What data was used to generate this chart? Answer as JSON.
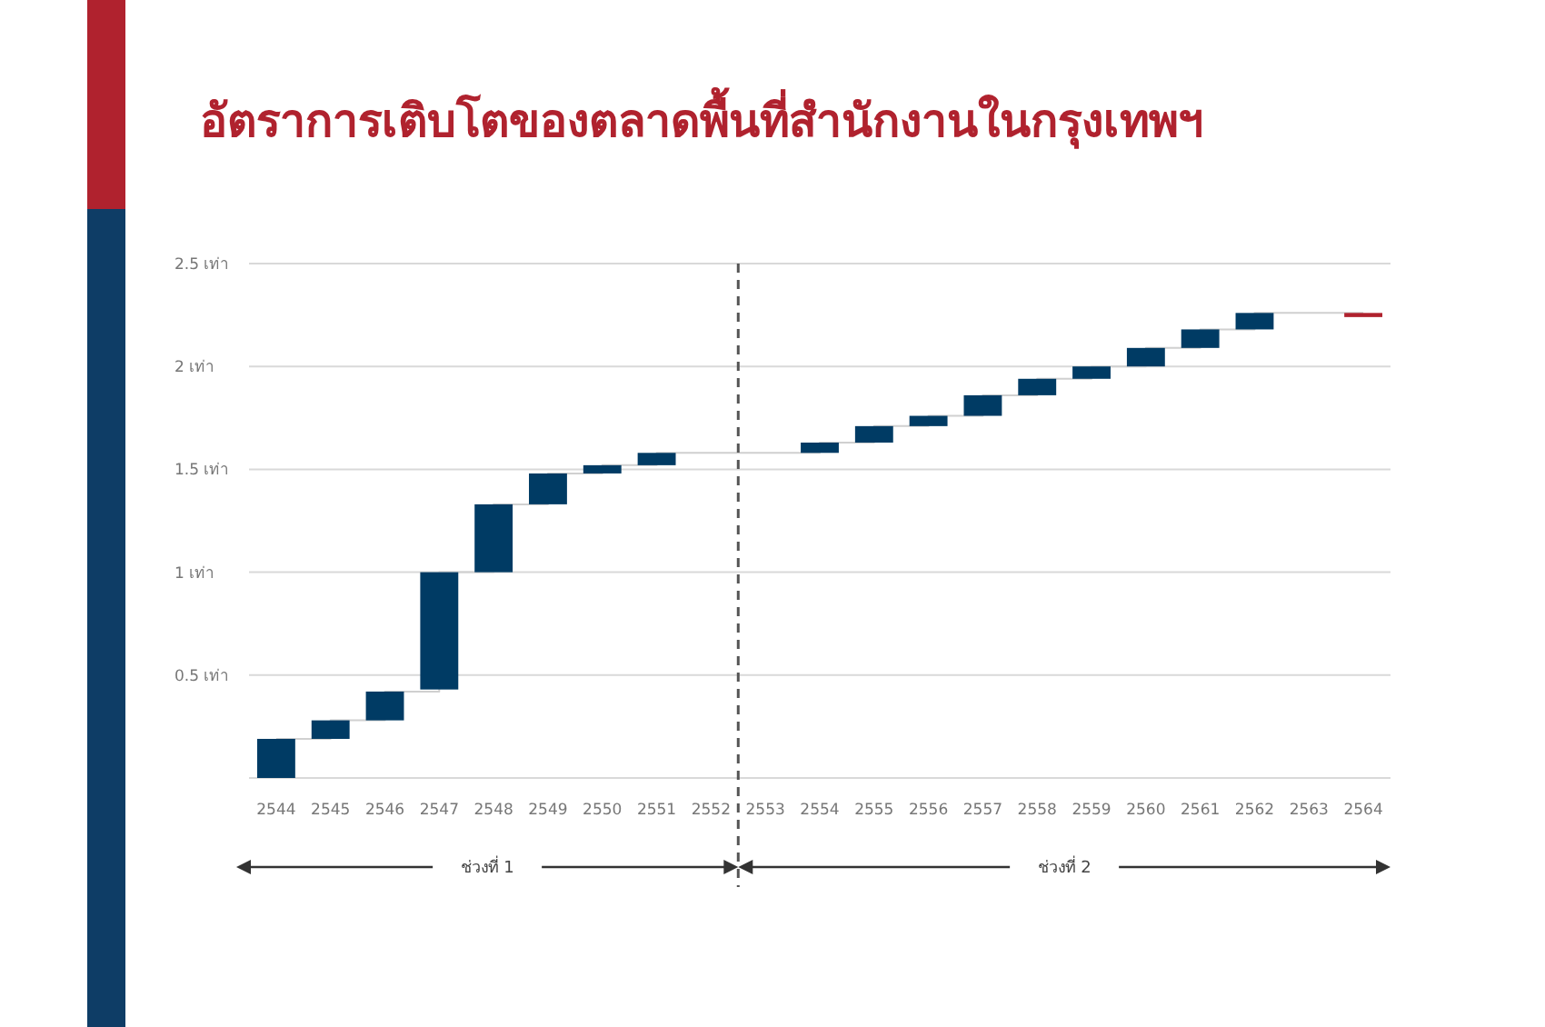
{
  "chart_data": {
    "type": "bar",
    "title": "อัตราการเติบโตของตลาดพื้นที่สำนักงานในกรุงเทพฯ",
    "categories": [
      "2544",
      "2545",
      "2546",
      "2547",
      "2548",
      "2549",
      "2550",
      "2551",
      "2552",
      "2553",
      "2554",
      "2555",
      "2556",
      "2557",
      "2558",
      "2559",
      "2560",
      "2561",
      "2562",
      "2563",
      "2564"
    ],
    "series": [
      {
        "values": [
          0.19,
          0.09,
          0.14,
          0.57,
          0.33,
          0.15,
          0.04,
          0.06,
          null,
          null,
          0.05,
          0.08,
          0.05,
          0.1,
          0.08,
          0.06,
          0.09,
          0.09,
          0.08,
          null,
          0.02
        ],
        "base": [
          0,
          0.19,
          0.28,
          0.43,
          1.0,
          1.33,
          1.48,
          1.52,
          null,
          null,
          1.58,
          1.63,
          1.71,
          1.76,
          1.86,
          1.94,
          2.0,
          2.09,
          2.18,
          null,
          2.24
        ],
        "colors": [
          "#003b64",
          "#003b64",
          "#003b64",
          "#003b64",
          "#003b64",
          "#003b64",
          "#003b64",
          "#003b64",
          null,
          null,
          "#003b64",
          "#003b64",
          "#003b64",
          "#003b64",
          "#003b64",
          "#003b64",
          "#003b64",
          "#003b64",
          "#003b64",
          null,
          "#b0222e"
        ]
      },
      {
        "type": "step",
        "color": "#d0d0d0",
        "values": [
          0.19,
          0.28,
          0.42,
          1.0,
          1.33,
          1.48,
          1.52,
          1.58,
          1.58,
          1.58,
          1.63,
          1.71,
          1.76,
          1.86,
          1.94,
          2.0,
          2.09,
          2.18,
          2.26,
          2.26,
          2.26
        ]
      }
    ],
    "ylim": [
      0,
      2.5
    ],
    "yticks": [
      {
        "value": 0,
        "label": null
      },
      {
        "value": 0.5,
        "label": "0.5 เท่า"
      },
      {
        "value": 1,
        "label": "1 เท่า"
      },
      {
        "value": 1.5,
        "label": "1.5 เท่า"
      },
      {
        "value": 2,
        "label": "2 เท่า"
      },
      {
        "value": 2.5,
        "label": "2.5 เท่า"
      }
    ],
    "grid": "y",
    "ref_lines": [
      {
        "axis": "x",
        "value": "2552",
        "line_style": "dashed",
        "color": "#555555"
      }
    ],
    "annotations": [
      "ช่วงที่ 1",
      "ช่วงที่ 2"
    ]
  }
}
